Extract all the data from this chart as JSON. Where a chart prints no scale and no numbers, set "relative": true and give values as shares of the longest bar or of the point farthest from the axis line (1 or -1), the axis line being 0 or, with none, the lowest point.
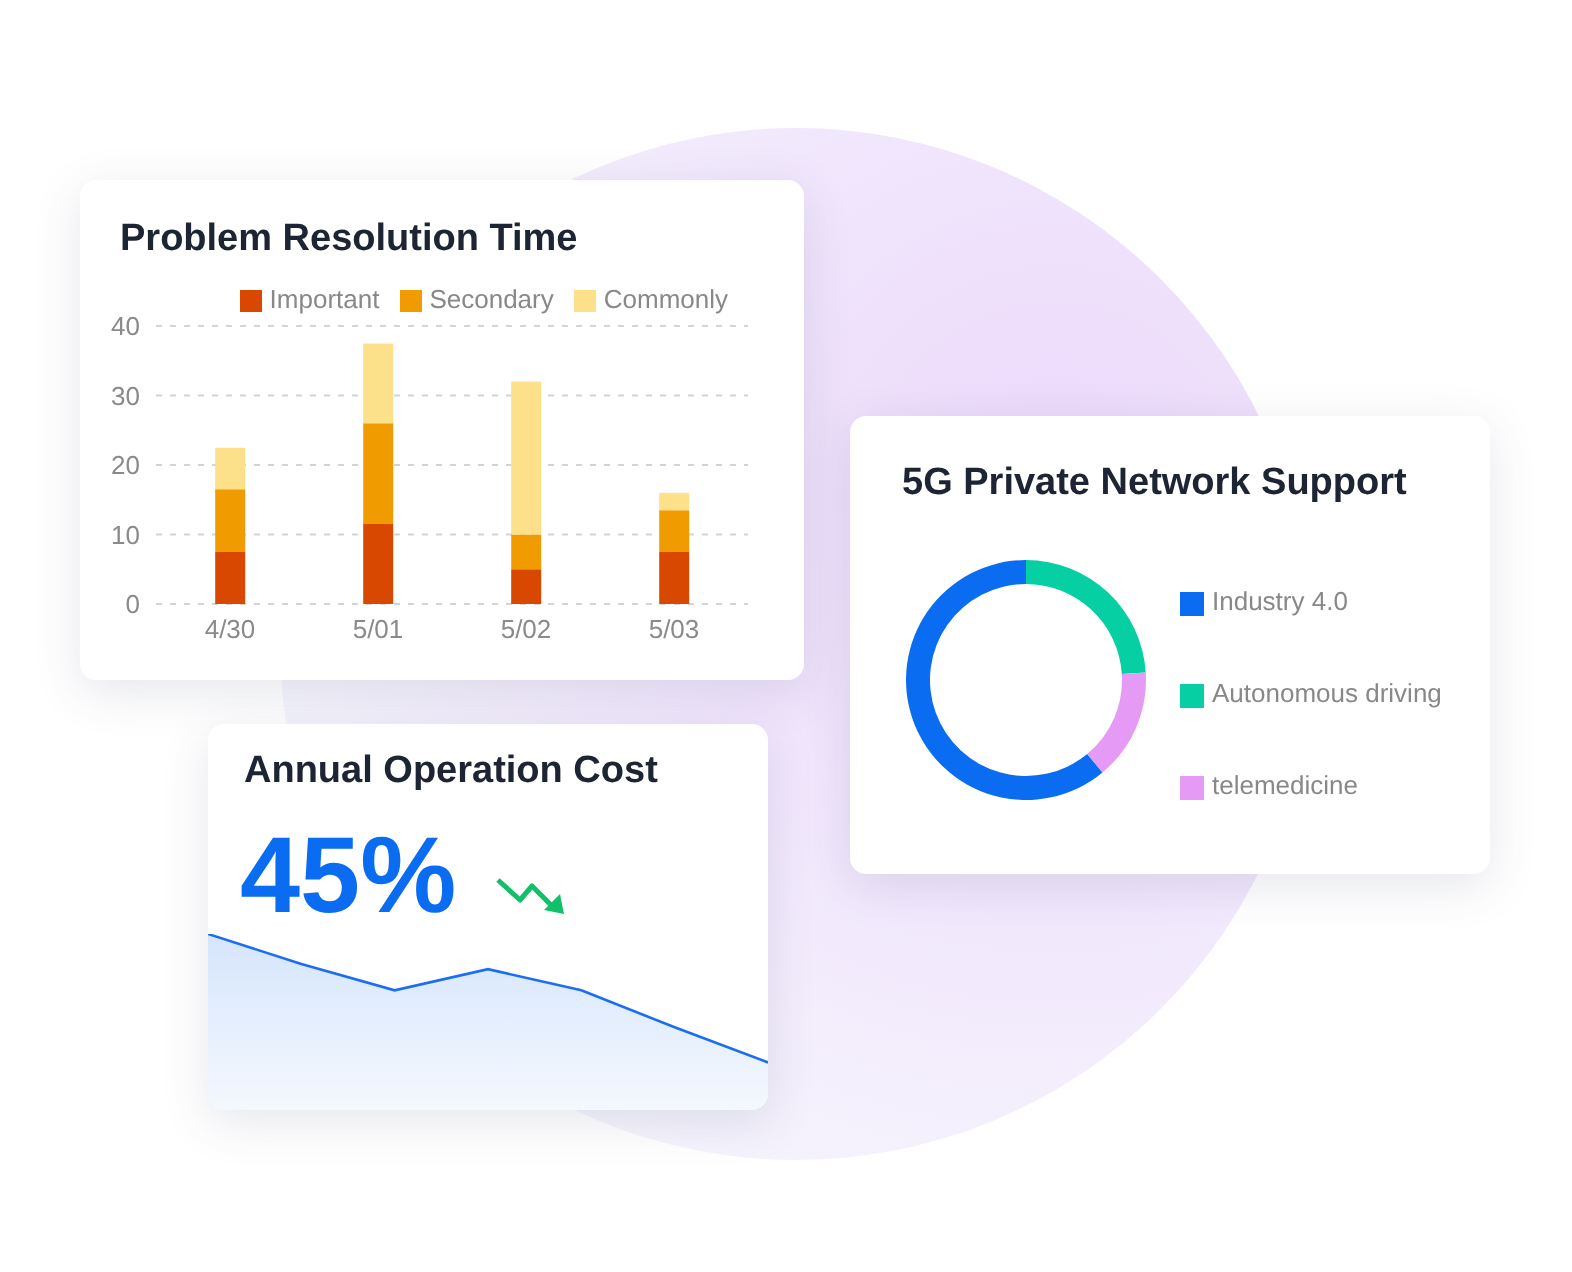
{
  "chart_data": [
    {
      "type": "bar",
      "title": "Problem Resolution Time",
      "categories": [
        "4/30",
        "5/01",
        "5/02",
        "5/03"
      ],
      "stacked": true,
      "series": [
        {
          "name": "Important",
          "color": "#d94800",
          "values": [
            7.5,
            11.5,
            5,
            7.5
          ]
        },
        {
          "name": "Secondary",
          "color": "#f09c00",
          "values": [
            9,
            14.5,
            5,
            6
          ]
        },
        {
          "name": "Commonly",
          "color": "#fde08a",
          "values": [
            6,
            11.5,
            22,
            2.5
          ]
        }
      ],
      "ylim": [
        0,
        40
      ],
      "yticks": [
        0,
        10,
        20,
        30,
        40
      ],
      "grid": "y",
      "legend": "top right"
    },
    {
      "type": "donut",
      "title": "5G Private Network Support",
      "categories": [
        "Industry 4.0",
        "Autonomous driving",
        "telemedicine"
      ],
      "values": [
        61,
        24,
        15
      ],
      "colors": [
        "#0a6cf0",
        "#06cfa4",
        "#e59af5"
      ],
      "legend": "right"
    },
    {
      "type": "area",
      "title": "Annual Operation Cost",
      "categories": [
        null,
        null,
        null,
        null,
        null,
        null,
        null
      ],
      "values": [
        1,
        0.83,
        0.68,
        0.8,
        0.68,
        0.47,
        0.27
      ],
      "color": "#1a6ef0",
      "relative": true,
      "annotations": [
        "45%"
      ]
    }
  ]
}
